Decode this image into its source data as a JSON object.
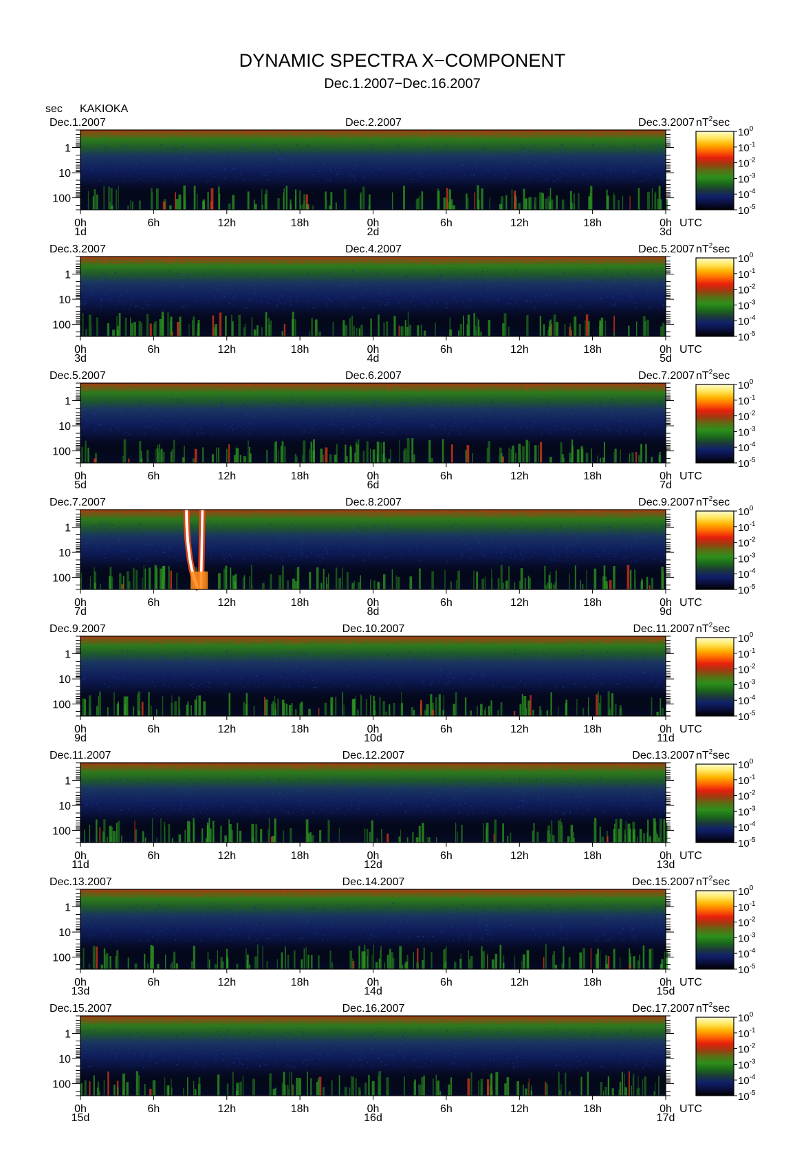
{
  "title": "DYNAMIC SPECTRA X−COMPONENT",
  "subtitle": "Dec.1.2007−Dec.16.2007",
  "y_unit_label": "sec",
  "station": "KAKIOKA",
  "x_unit_label": "UTC",
  "colorbar_unit": "nT",
  "colorbar_unit_exp": "2",
  "colorbar_unit_suffix": "sec",
  "colors": {
    "background": "#ffffff",
    "colormap": [
      "#000000",
      "#0a0f3c",
      "#10206a",
      "#1c3a3a",
      "#1b6a1a",
      "#2e8f1c",
      "#5a6e14",
      "#a03a10",
      "#e8200c",
      "#ff6a00",
      "#ffb400",
      "#ffe860",
      "#fffbd0"
    ]
  },
  "chart_data": {
    "type": "heatmap",
    "y_axis": {
      "label": "sec",
      "scale": "log",
      "ticks": [
        "1",
        "10",
        "100"
      ],
      "range": [
        0.2,
        300
      ],
      "reversed": true
    },
    "x_axis": {
      "ticks": [
        "0h",
        "6h",
        "12h",
        "18h",
        "0h",
        "6h",
        "12h",
        "18h",
        "0h"
      ],
      "range_hours": [
        0,
        48
      ]
    },
    "colorbar": {
      "unit": "nT²sec",
      "scale": "log",
      "ticks": [
        {
          "base": "10",
          "exp": "0"
        },
        {
          "base": "10",
          "exp": "-1"
        },
        {
          "base": "10",
          "exp": "-2"
        },
        {
          "base": "10",
          "exp": "-3"
        },
        {
          "base": "10",
          "exp": "-4"
        },
        {
          "base": "10",
          "exp": "-5"
        }
      ]
    },
    "panels": [
      {
        "left_date": "Dec.1.2007",
        "mid_date": "Dec.2.2007",
        "right_date": "Dec.3.2007",
        "day_start": "1d",
        "day_mid": "2d",
        "day_end": "3d",
        "events": []
      },
      {
        "left_date": "Dec.3.2007",
        "mid_date": "Dec.4.2007",
        "right_date": "Dec.5.2007",
        "day_start": "3d",
        "day_mid": "4d",
        "day_end": "5d",
        "events": []
      },
      {
        "left_date": "Dec.5.2007",
        "mid_date": "Dec.6.2007",
        "right_date": "Dec.7.2007",
        "day_start": "5d",
        "day_mid": "6d",
        "day_end": "7d",
        "events": []
      },
      {
        "left_date": "Dec.7.2007",
        "mid_date": "Dec.8.2007",
        "right_date": "Dec.9.2007",
        "day_start": "7d",
        "day_mid": "8d",
        "day_end": "9d",
        "events": [
          {
            "kind": "saturated-vertical",
            "hour_start": 8.7,
            "hour_end": 10.0
          }
        ]
      },
      {
        "left_date": "Dec.9.2007",
        "mid_date": "Dec.10.2007",
        "right_date": "Dec.11.2007",
        "day_start": "9d",
        "day_mid": "10d",
        "day_end": "11d",
        "events": []
      },
      {
        "left_date": "Dec.11.2007",
        "mid_date": "Dec.12.2007",
        "right_date": "Dec.13.2007",
        "day_start": "11d",
        "day_mid": "12d",
        "day_end": "13d",
        "events": []
      },
      {
        "left_date": "Dec.13.2007",
        "mid_date": "Dec.14.2007",
        "right_date": "Dec.15.2007",
        "day_start": "13d",
        "day_mid": "14d",
        "day_end": "15d",
        "events": []
      },
      {
        "left_date": "Dec.15.2007",
        "mid_date": "Dec.16.2007",
        "right_date": "Dec.17.2007",
        "day_start": "15d",
        "day_mid": "16d",
        "day_end": "17d",
        "events": []
      }
    ]
  }
}
